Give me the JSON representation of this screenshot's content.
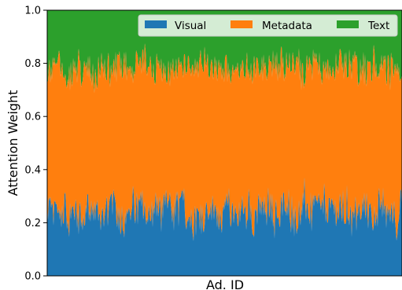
{
  "chart_data": {
    "type": "area",
    "stacked": true,
    "normalized": true,
    "xlabel": "Ad. ID",
    "ylabel": "Attention Weight",
    "x_ticks_shown": false,
    "ylim": [
      0,
      1
    ],
    "yticks": [
      "0.0",
      "0.2",
      "0.4",
      "0.6",
      "0.8",
      "1.0"
    ],
    "grid": false,
    "legend_position": "top-right",
    "series": [
      {
        "name": "Visual",
        "color": "#1f77b4",
        "mean_share": 0.24,
        "typical_range": [
          0.1,
          0.4
        ]
      },
      {
        "name": "Metadata",
        "color": "#ff7f0e",
        "mean_share": 0.54,
        "typical_range": [
          0.4,
          0.7
        ]
      },
      {
        "name": "Text",
        "color": "#2ca02c",
        "mean_share": 0.22,
        "typical_range": [
          0.1,
          0.35
        ]
      }
    ]
  }
}
